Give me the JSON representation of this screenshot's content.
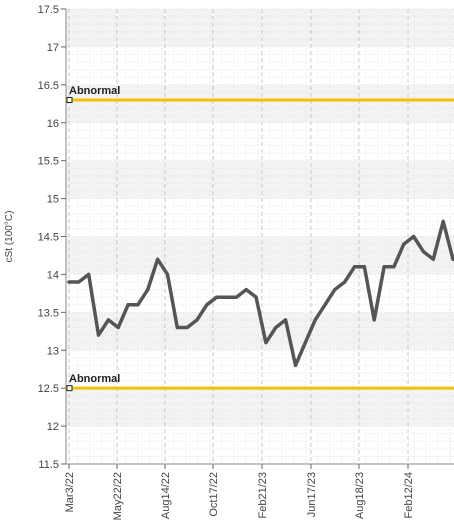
{
  "chart_data": {
    "type": "line",
    "title": "",
    "xlabel": "",
    "ylabel": "cSt (100°C)",
    "ylim": [
      11.5,
      17.5
    ],
    "yticks": [
      11.5,
      12,
      12.5,
      13,
      13.5,
      14,
      14.5,
      15,
      15.5,
      16,
      16.5,
      17,
      17.5
    ],
    "x_tick_labels": [
      "Mar3/22",
      "May22/22",
      "Aug14/22",
      "Oct17/22",
      "Feb21/23",
      "Jun17/23",
      "Aug18/23",
      "Feb12/24"
    ],
    "grid": true,
    "series": [
      {
        "name": "",
        "color": "#555555",
        "values": [
          13.9,
          13.9,
          14.0,
          13.2,
          13.4,
          13.3,
          13.6,
          13.6,
          13.8,
          14.2,
          14.0,
          13.3,
          13.3,
          13.4,
          13.6,
          13.7,
          13.7,
          13.7,
          13.8,
          13.7,
          13.1,
          13.3,
          13.4,
          12.8,
          13.1,
          13.4,
          13.6,
          13.8,
          13.9,
          14.1,
          14.1,
          13.4,
          14.1,
          14.1,
          14.4,
          14.5,
          14.3,
          14.2,
          14.7,
          14.2
        ]
      }
    ],
    "reference_lines": [
      {
        "label": "Abnormal",
        "value": 16.3,
        "color": "#f2c200"
      },
      {
        "label": "Abnormal",
        "value": 12.5,
        "color": "#f2c200"
      }
    ]
  }
}
